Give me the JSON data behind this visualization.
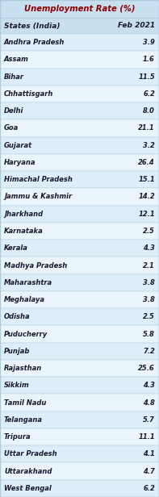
{
  "title": "Unemployment Rate (%)",
  "col1_header": "States (India)",
  "col2_header": "Feb 2021",
  "states": [
    "Andhra Pradesh",
    "Assam",
    "Bihar",
    "Chhattisgarh",
    "Delhi",
    "Goa",
    "Gujarat",
    "Haryana",
    "Himachal Pradesh",
    "Jammu & Kashmir",
    "Jharkhand",
    "Karnataka",
    "Kerala",
    "Madhya Pradesh",
    "Maharashtra",
    "Meghalaya",
    "Odisha",
    "Puducherry",
    "Punjab",
    "Rajasthan",
    "Sikkim",
    "Tamil Nadu",
    "Telangana",
    "Tripura",
    "Uttar Pradesh",
    "Uttarakhand",
    "West Bengal"
  ],
  "values": [
    3.9,
    1.6,
    11.5,
    6.2,
    8.0,
    21.1,
    3.2,
    26.4,
    15.1,
    14.2,
    12.1,
    2.5,
    4.3,
    2.1,
    3.8,
    3.8,
    2.5,
    5.8,
    7.2,
    25.6,
    4.3,
    4.8,
    5.7,
    11.1,
    4.1,
    4.7,
    6.2
  ],
  "title_color": "#8B0000",
  "header_color": "#1a1a2e",
  "header_bg": "#c8dff0",
  "row_bg_light": "#ddeef8",
  "row_bg_white": "#eaf4fb",
  "border_color": "#aaccdd",
  "text_color": "#1a1a2e",
  "fig_bg": "#ddeef8",
  "title_bg": "#c8dff0",
  "title_fontsize": 7.2,
  "header_fontsize": 6.5,
  "row_fontsize": 6.0
}
